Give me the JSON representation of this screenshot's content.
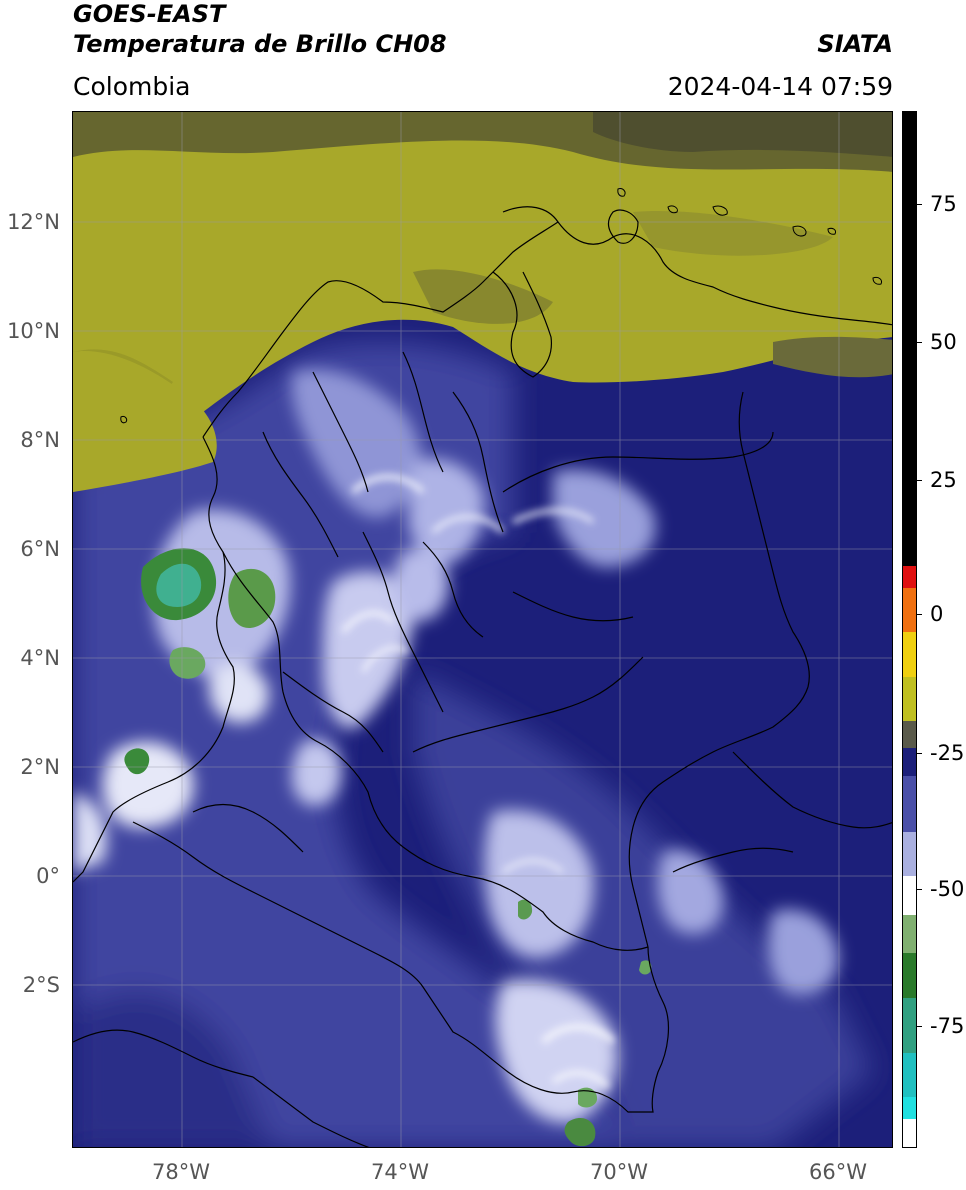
{
  "header": {
    "satellite": "GOES-EAST",
    "product": "Temperatura de Brillo CH08",
    "organization": "SIATA",
    "region": "Colombia",
    "datetime": "2024-04-14 07:59"
  },
  "map": {
    "lat_labels": [
      "12°N",
      "10°N",
      "8°N",
      "6°N",
      "4°N",
      "2°N",
      "0°",
      "2°S"
    ],
    "lat_values": [
      12,
      10,
      8,
      6,
      4,
      2,
      0,
      -2
    ],
    "lon_labels": [
      "78°W",
      "74°W",
      "70°W",
      "66°W"
    ],
    "lon_values": [
      -78,
      -74,
      -70,
      -66
    ],
    "lat_range": [
      -5.2,
      13.9
    ],
    "lon_range": [
      -80.0,
      -65.0
    ],
    "colors": {
      "deep_blue": "#1c1f7a",
      "mid_blue": "#4a4fa8",
      "light_blue": "#aab0e0",
      "white": "#f2f2f8",
      "green": "#3a8a3a",
      "teal": "#40b090",
      "olive": "#a8a82a",
      "grey_olive": "#6d6d3a",
      "border": "#000000",
      "grid": "#9999aa"
    }
  },
  "colorbar": {
    "ticks": [
      "75",
      "50",
      "25",
      "0",
      "-25",
      "-50",
      "-75"
    ],
    "tick_values": [
      75,
      50,
      25,
      0,
      -25,
      -50,
      -75
    ],
    "range": [
      -97,
      90
    ],
    "segments": [
      {
        "from": 8,
        "to": 90,
        "color": "#000000"
      },
      {
        "from": 4,
        "to": 8,
        "color": "#e01010"
      },
      {
        "from": -4,
        "to": 4,
        "color": "#f07010"
      },
      {
        "from": -12,
        "to": -4,
        "color": "#f0d010"
      },
      {
        "from": -20,
        "to": -12,
        "color": "#c0c020"
      },
      {
        "from": -25,
        "to": -20,
        "color": "#5a5a4a"
      },
      {
        "from": -30,
        "to": -25,
        "color": "#1c1f7a"
      },
      {
        "from": -40,
        "to": -30,
        "color": "#4a4fa8"
      },
      {
        "from": -48,
        "to": -40,
        "color": "#aab0e0"
      },
      {
        "from": -55,
        "to": -48,
        "color": "#ffffff"
      },
      {
        "from": -62,
        "to": -55,
        "color": "#80b070"
      },
      {
        "from": -70,
        "to": -62,
        "color": "#2a7a2a"
      },
      {
        "from": -80,
        "to": -70,
        "color": "#30a080"
      },
      {
        "from": -88,
        "to": -80,
        "color": "#20c0c0"
      },
      {
        "from": -92,
        "to": -88,
        "color": "#20e0e0"
      },
      {
        "from": -97,
        "to": -92,
        "color": "#ffffff"
      }
    ]
  }
}
